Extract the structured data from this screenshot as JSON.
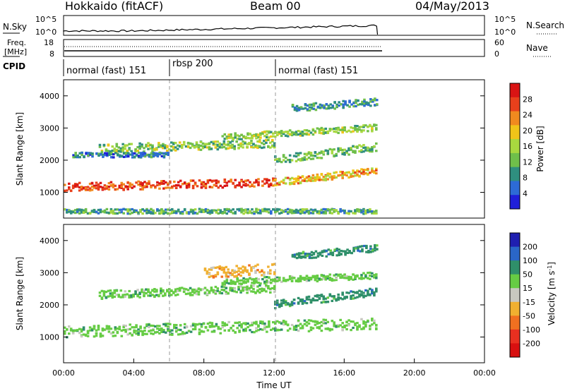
{
  "header": {
    "radar": "Hokkaido (fitACF)",
    "beam": "Beam 00",
    "date": "04/May/2013"
  },
  "noise_panel": {
    "left_label": "N.Sky",
    "right_label": "N.Search",
    "left_ticks": [
      "10^5",
      "10^0"
    ],
    "right_ticks": [
      "10^5",
      "10^0"
    ]
  },
  "freq_panel": {
    "left_label_1": "Freq.",
    "left_label_2": "[MHz]",
    "right_label": "Nave",
    "left_ticks": [
      "18",
      "8"
    ],
    "right_ticks": [
      "60",
      "0"
    ]
  },
  "cpid": {
    "label": "CPID",
    "segments": [
      {
        "name": "normal (fast) 151",
        "start_hour": 0,
        "end_hour": 6
      },
      {
        "name": "rbsp 200",
        "start_hour": 6,
        "end_hour": 12
      },
      {
        "name": "normal (fast) 151",
        "start_hour": 12,
        "end_hour": 24
      }
    ]
  },
  "chart_data": [
    {
      "type": "heatmap",
      "name_for_panel": "power",
      "ylabel": "Slant Range [km]",
      "xlim_hours": [
        0,
        24
      ],
      "ylim_km": [
        200,
        4500
      ],
      "y_ticks": [
        1000,
        2000,
        3000,
        4000
      ],
      "colorbar": {
        "label": "Power [dB]",
        "ticks": [
          28,
          24,
          20,
          16,
          12,
          8,
          4
        ],
        "range": [
          0,
          32
        ],
        "colors": [
          "#1f1fd9",
          "#2d6bd6",
          "#2f8f7f",
          "#6fbf4a",
          "#a8d83f",
          "#f0c419",
          "#f08a1f",
          "#e8401c",
          "#d91414"
        ]
      },
      "bands": [
        {
          "x0": 0,
          "x1": 12,
          "y_center_start": 1150,
          "y_center_end": 1300,
          "thickness": 250,
          "level": 28
        },
        {
          "x0": 12,
          "x1": 17.8,
          "y_center_start": 1300,
          "y_center_end": 1650,
          "thickness": 220,
          "level": 22
        },
        {
          "x0": 2,
          "x1": 12,
          "y_center_start": 2350,
          "y_center_end": 2500,
          "thickness": 260,
          "level": 14
        },
        {
          "x0": 9,
          "x1": 17.8,
          "y_center_start": 2700,
          "y_center_end": 3000,
          "thickness": 200,
          "level": 14
        },
        {
          "x0": 0.5,
          "x1": 6,
          "y_center_start": 2150,
          "y_center_end": 2150,
          "thickness": 150,
          "level": 6
        },
        {
          "x0": 12,
          "x1": 17.8,
          "y_center_start": 2000,
          "y_center_end": 2400,
          "thickness": 250,
          "level": 12
        },
        {
          "x0": 13,
          "x1": 17.8,
          "y_center_start": 3600,
          "y_center_end": 3800,
          "thickness": 220,
          "level": 8
        },
        {
          "x0": 0,
          "x1": 17.8,
          "y_center_start": 400,
          "y_center_end": 400,
          "thickness": 150,
          "level": 10
        }
      ]
    },
    {
      "type": "heatmap",
      "name_for_panel": "velocity",
      "ylabel": "Slant Range [km]",
      "xlabel": "Time UT",
      "xlim_hours": [
        0,
        24
      ],
      "ylim_km": [
        200,
        4500
      ],
      "y_ticks": [
        1000,
        2000,
        3000,
        4000
      ],
      "x_ticks": [
        "00:00",
        "04:00",
        "08:00",
        "12:00",
        "16:00",
        "20:00",
        "00:00"
      ],
      "colorbar": {
        "label": "Velocity [m s^-1]",
        "ticks": [
          "200",
          "100",
          "50",
          "15",
          "-15",
          "-50",
          "-100",
          "-200"
        ],
        "colors": [
          "#1f1fb0",
          "#2a66c8",
          "#2f8f6a",
          "#66cc44",
          "#c8c8c0",
          "#f0b030",
          "#f07020",
          "#e83020",
          "#d81010"
        ]
      },
      "bands": [
        {
          "x0": 0,
          "x1": 17.8,
          "y_center_start": 1150,
          "y_center_end": 1400,
          "thickness": 350,
          "level": "15"
        },
        {
          "x0": 2,
          "x1": 12,
          "y_center_start": 2300,
          "y_center_end": 2500,
          "thickness": 250,
          "level": "15"
        },
        {
          "x0": 8,
          "x1": 12,
          "y_center_start": 3000,
          "y_center_end": 3100,
          "thickness": 350,
          "level": "-50"
        },
        {
          "x0": 9,
          "x1": 17.8,
          "y_center_start": 2700,
          "y_center_end": 2900,
          "thickness": 200,
          "level": "15"
        },
        {
          "x0": 12,
          "x1": 17.8,
          "y_center_start": 2000,
          "y_center_end": 2400,
          "thickness": 250,
          "level": "50"
        },
        {
          "x0": 13,
          "x1": 17.8,
          "y_center_start": 3500,
          "y_center_end": 3750,
          "thickness": 220,
          "level": "50"
        }
      ]
    }
  ]
}
